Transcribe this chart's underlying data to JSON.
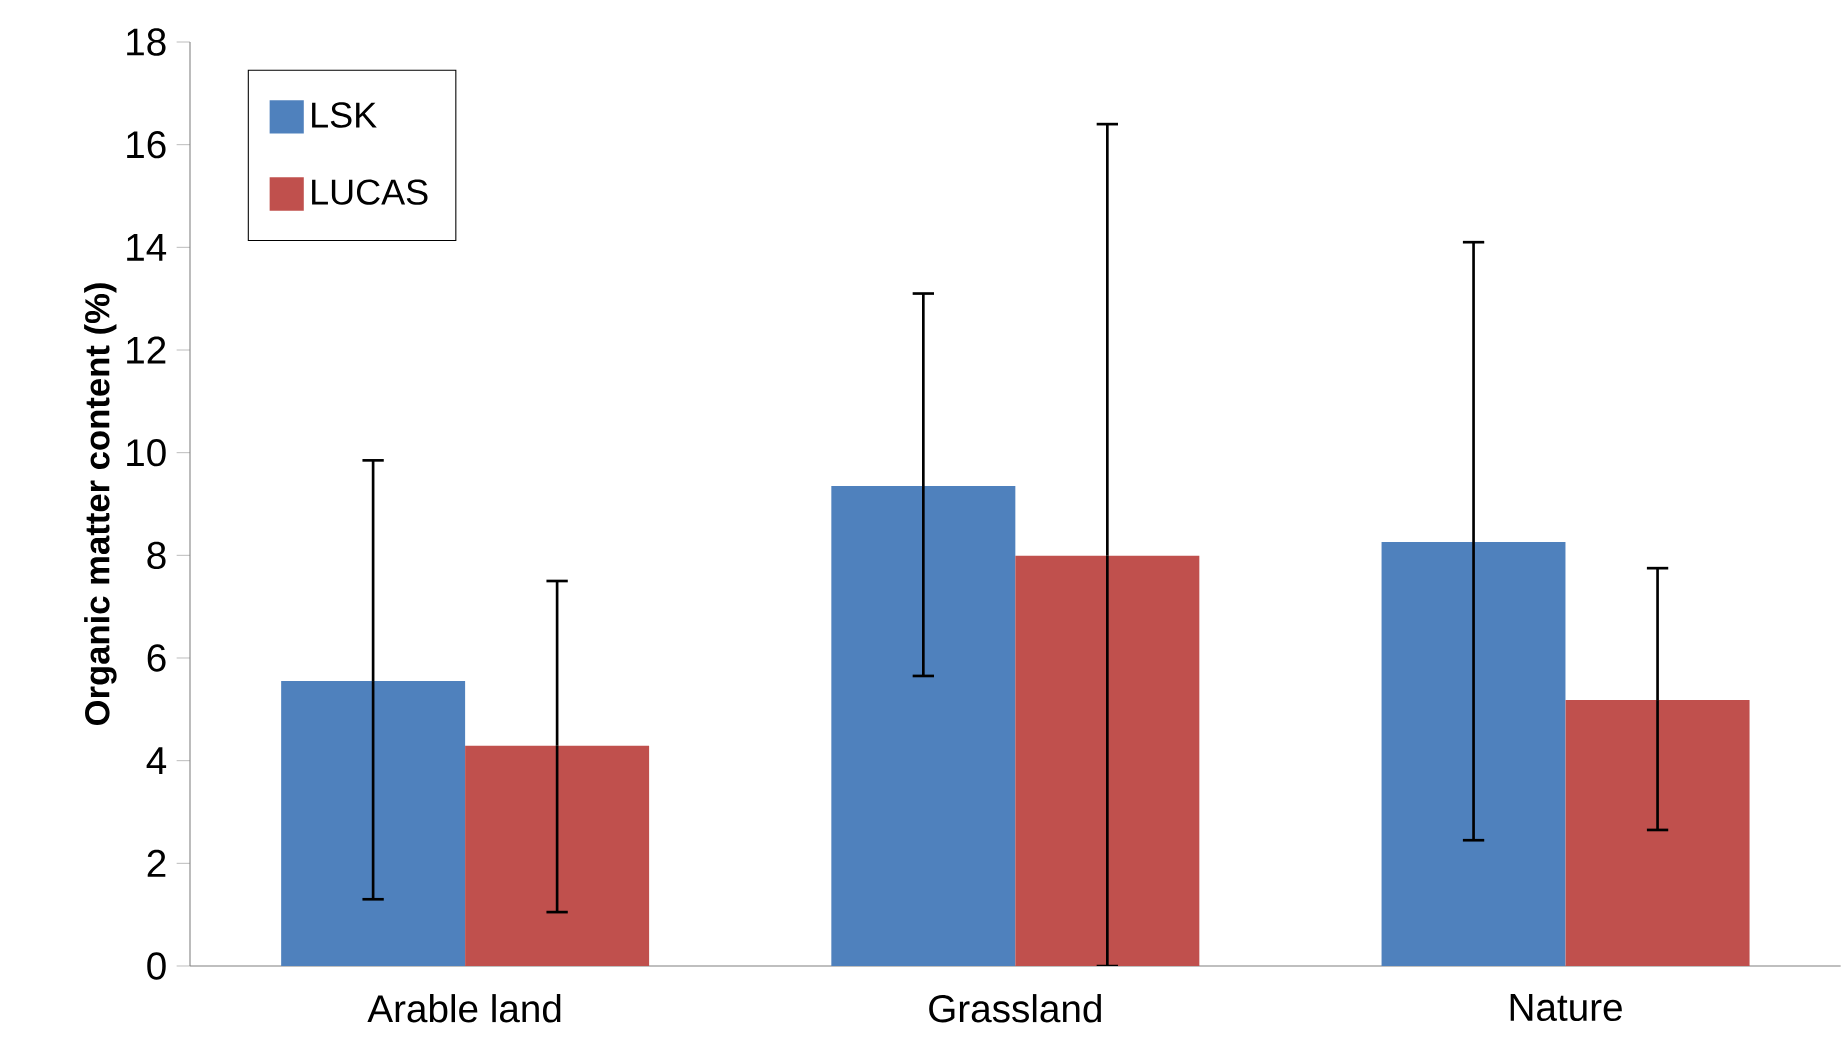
{
  "chart_data": {
    "type": "bar",
    "ylabel": "Organic matter content (%)",
    "categories": [
      "Arable land",
      "Grassland",
      "Nature"
    ],
    "series": [
      {
        "name": "LSK",
        "color": "#4f81bd",
        "values": [
          5.55,
          9.35,
          8.26
        ],
        "errors": [
          [
            1.3,
            9.85
          ],
          [
            5.65,
            13.1
          ],
          [
            2.45,
            14.1
          ]
        ]
      },
      {
        "name": "LUCAS",
        "color": "#c0504d",
        "values": [
          4.29,
          7.99,
          5.18
        ],
        "errors": [
          [
            1.05,
            7.5
          ],
          [
            0,
            16.4
          ],
          [
            2.65,
            7.75
          ]
        ]
      }
    ],
    "ylim": [
      0,
      18
    ],
    "yticks": [
      0,
      2,
      4,
      6,
      8,
      10,
      12,
      14,
      16,
      18
    ],
    "legend": "top left"
  }
}
